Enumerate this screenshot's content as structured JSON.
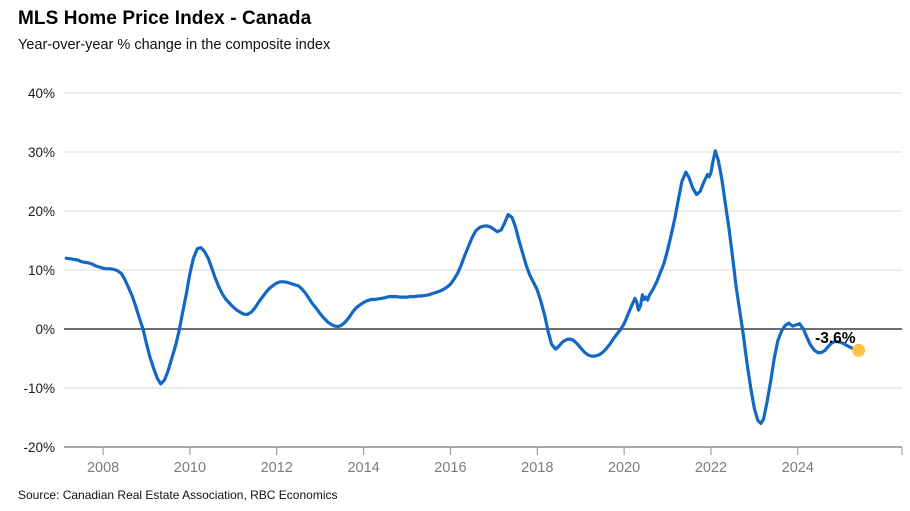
{
  "chart_data": {
    "type": "line",
    "title": "MLS Home Price Index - Canada",
    "subtitle": "Year-over-year % change in the composite index",
    "source": "Source: Canadian Real Estate Association, RBC Economics",
    "xlabel": "",
    "ylabel": "",
    "legend_position": "none",
    "grid": "horizontal gridlines at each 10%, darker line at 0%",
    "x_range": [
      2007.1,
      2026.4
    ],
    "y_range": [
      -20,
      40
    ],
    "x_ticks": [
      {
        "value": 2008,
        "label": "2008"
      },
      {
        "value": 2010,
        "label": "2010"
      },
      {
        "value": 2012,
        "label": "2012"
      },
      {
        "value": 2014,
        "label": "2014"
      },
      {
        "value": 2016,
        "label": "2016"
      },
      {
        "value": 2018,
        "label": "2018"
      },
      {
        "value": 2020,
        "label": "2020"
      },
      {
        "value": 2022,
        "label": "2022"
      },
      {
        "value": 2024,
        "label": "2024"
      }
    ],
    "y_ticks": [
      {
        "value": 40,
        "label": "40%"
      },
      {
        "value": 30,
        "label": "30%"
      },
      {
        "value": 20,
        "label": "20%"
      },
      {
        "value": 10,
        "label": "10%"
      },
      {
        "value": 0,
        "label": "0%"
      },
      {
        "value": -10,
        "label": "-10%"
      },
      {
        "value": -20,
        "label": "-20%"
      }
    ],
    "colors": {
      "line": "#1268c3",
      "dot": "#fdc244",
      "grid": "#d9d9d9",
      "axis": "#8c8c8c",
      "zero_line": "#3f3f3f",
      "x_tick_label": "#7c7c7c",
      "y_tick_label": "#1a1a1a",
      "annotation": "#000000"
    },
    "end_point": {
      "x": 2025.4,
      "y": -3.6,
      "label": "-3.6%"
    },
    "series": [
      {
        "name": "MLS HPI composite index, y/y % change",
        "points": [
          [
            2007.15,
            12.0
          ],
          [
            2007.25,
            11.9
          ],
          [
            2007.33,
            11.8
          ],
          [
            2007.42,
            11.7
          ],
          [
            2007.5,
            11.4
          ],
          [
            2007.58,
            11.3
          ],
          [
            2007.67,
            11.2
          ],
          [
            2007.75,
            11.0
          ],
          [
            2007.83,
            10.7
          ],
          [
            2007.92,
            10.5
          ],
          [
            2008.0,
            10.3
          ],
          [
            2008.08,
            10.2
          ],
          [
            2008.17,
            10.2
          ],
          [
            2008.25,
            10.1
          ],
          [
            2008.33,
            9.9
          ],
          [
            2008.42,
            9.4
          ],
          [
            2008.5,
            8.4
          ],
          [
            2008.58,
            7.1
          ],
          [
            2008.67,
            5.6
          ],
          [
            2008.75,
            3.9
          ],
          [
            2008.83,
            2.0
          ],
          [
            2008.92,
            0.0
          ],
          [
            2009.0,
            -2.5
          ],
          [
            2009.08,
            -4.8
          ],
          [
            2009.17,
            -6.8
          ],
          [
            2009.25,
            -8.4
          ],
          [
            2009.33,
            -9.3
          ],
          [
            2009.42,
            -8.6
          ],
          [
            2009.5,
            -7.0
          ],
          [
            2009.58,
            -5.0
          ],
          [
            2009.67,
            -2.8
          ],
          [
            2009.75,
            -0.3
          ],
          [
            2009.83,
            2.7
          ],
          [
            2009.92,
            6.0
          ],
          [
            2010.0,
            9.4
          ],
          [
            2010.08,
            12.0
          ],
          [
            2010.17,
            13.6
          ],
          [
            2010.25,
            13.8
          ],
          [
            2010.33,
            13.2
          ],
          [
            2010.42,
            12.0
          ],
          [
            2010.5,
            10.4
          ],
          [
            2010.58,
            8.7
          ],
          [
            2010.67,
            7.1
          ],
          [
            2010.75,
            5.9
          ],
          [
            2010.83,
            5.0
          ],
          [
            2010.92,
            4.3
          ],
          [
            2011.0,
            3.7
          ],
          [
            2011.08,
            3.2
          ],
          [
            2011.17,
            2.8
          ],
          [
            2011.25,
            2.5
          ],
          [
            2011.33,
            2.5
          ],
          [
            2011.42,
            2.9
          ],
          [
            2011.5,
            3.6
          ],
          [
            2011.58,
            4.5
          ],
          [
            2011.67,
            5.4
          ],
          [
            2011.75,
            6.2
          ],
          [
            2011.83,
            6.9
          ],
          [
            2011.92,
            7.4
          ],
          [
            2012.0,
            7.8
          ],
          [
            2012.08,
            8.0
          ],
          [
            2012.17,
            8.0
          ],
          [
            2012.25,
            7.9
          ],
          [
            2012.33,
            7.7
          ],
          [
            2012.42,
            7.5
          ],
          [
            2012.5,
            7.3
          ],
          [
            2012.58,
            6.8
          ],
          [
            2012.67,
            6.0
          ],
          [
            2012.75,
            5.1
          ],
          [
            2012.83,
            4.2
          ],
          [
            2012.92,
            3.4
          ],
          [
            2013.0,
            2.6
          ],
          [
            2013.08,
            1.9
          ],
          [
            2013.17,
            1.2
          ],
          [
            2013.25,
            0.8
          ],
          [
            2013.33,
            0.5
          ],
          [
            2013.42,
            0.4
          ],
          [
            2013.5,
            0.7
          ],
          [
            2013.58,
            1.2
          ],
          [
            2013.67,
            2.0
          ],
          [
            2013.75,
            2.9
          ],
          [
            2013.83,
            3.6
          ],
          [
            2013.92,
            4.1
          ],
          [
            2014.0,
            4.5
          ],
          [
            2014.08,
            4.8
          ],
          [
            2014.17,
            5.0
          ],
          [
            2014.25,
            5.0
          ],
          [
            2014.33,
            5.1
          ],
          [
            2014.42,
            5.2
          ],
          [
            2014.5,
            5.3
          ],
          [
            2014.58,
            5.5
          ],
          [
            2014.67,
            5.5
          ],
          [
            2014.75,
            5.5
          ],
          [
            2014.83,
            5.4
          ],
          [
            2014.92,
            5.4
          ],
          [
            2015.0,
            5.4
          ],
          [
            2015.08,
            5.5
          ],
          [
            2015.17,
            5.5
          ],
          [
            2015.25,
            5.6
          ],
          [
            2015.33,
            5.6
          ],
          [
            2015.42,
            5.7
          ],
          [
            2015.5,
            5.8
          ],
          [
            2015.58,
            6.0
          ],
          [
            2015.67,
            6.2
          ],
          [
            2015.75,
            6.4
          ],
          [
            2015.83,
            6.7
          ],
          [
            2015.92,
            7.1
          ],
          [
            2016.0,
            7.6
          ],
          [
            2016.08,
            8.4
          ],
          [
            2016.17,
            9.5
          ],
          [
            2016.25,
            10.9
          ],
          [
            2016.33,
            12.5
          ],
          [
            2016.42,
            14.1
          ],
          [
            2016.5,
            15.5
          ],
          [
            2016.58,
            16.6
          ],
          [
            2016.67,
            17.2
          ],
          [
            2016.75,
            17.4
          ],
          [
            2016.83,
            17.5
          ],
          [
            2016.92,
            17.3
          ],
          [
            2017.0,
            16.9
          ],
          [
            2017.08,
            16.5
          ],
          [
            2017.17,
            16.8
          ],
          [
            2017.25,
            18.0
          ],
          [
            2017.33,
            19.4
          ],
          [
            2017.42,
            18.9
          ],
          [
            2017.5,
            17.2
          ],
          [
            2017.58,
            15.0
          ],
          [
            2017.67,
            12.7
          ],
          [
            2017.75,
            10.7
          ],
          [
            2017.83,
            9.1
          ],
          [
            2017.92,
            7.8
          ],
          [
            2018.0,
            6.6
          ],
          [
            2018.08,
            4.8
          ],
          [
            2018.17,
            2.3
          ],
          [
            2018.25,
            -0.4
          ],
          [
            2018.33,
            -2.6
          ],
          [
            2018.42,
            -3.4
          ],
          [
            2018.5,
            -2.9
          ],
          [
            2018.58,
            -2.2
          ],
          [
            2018.67,
            -1.8
          ],
          [
            2018.75,
            -1.7
          ],
          [
            2018.83,
            -1.9
          ],
          [
            2018.92,
            -2.5
          ],
          [
            2019.0,
            -3.2
          ],
          [
            2019.08,
            -3.9
          ],
          [
            2019.17,
            -4.4
          ],
          [
            2019.25,
            -4.6
          ],
          [
            2019.33,
            -4.6
          ],
          [
            2019.42,
            -4.4
          ],
          [
            2019.5,
            -4.0
          ],
          [
            2019.58,
            -3.4
          ],
          [
            2019.67,
            -2.6
          ],
          [
            2019.75,
            -1.7
          ],
          [
            2019.83,
            -0.9
          ],
          [
            2019.92,
            -0.1
          ],
          [
            2020.0,
            0.9
          ],
          [
            2020.08,
            2.3
          ],
          [
            2020.17,
            3.9
          ],
          [
            2020.25,
            5.2
          ],
          [
            2020.29,
            4.6
          ],
          [
            2020.33,
            3.2
          ],
          [
            2020.38,
            4.0
          ],
          [
            2020.42,
            5.8
          ],
          [
            2020.46,
            5.0
          ],
          [
            2020.5,
            5.4
          ],
          [
            2020.54,
            4.9
          ],
          [
            2020.58,
            5.7
          ],
          [
            2020.67,
            6.8
          ],
          [
            2020.75,
            8.0
          ],
          [
            2020.83,
            9.5
          ],
          [
            2020.92,
            11.2
          ],
          [
            2021.0,
            13.3
          ],
          [
            2021.08,
            15.8
          ],
          [
            2021.17,
            18.8
          ],
          [
            2021.25,
            22.0
          ],
          [
            2021.33,
            25.0
          ],
          [
            2021.42,
            26.6
          ],
          [
            2021.5,
            25.6
          ],
          [
            2021.58,
            23.9
          ],
          [
            2021.67,
            22.8
          ],
          [
            2021.75,
            23.3
          ],
          [
            2021.83,
            24.8
          ],
          [
            2021.92,
            26.2
          ],
          [
            2021.96,
            25.8
          ],
          [
            2022.0,
            26.5
          ],
          [
            2022.04,
            28.2
          ],
          [
            2022.1,
            30.2
          ],
          [
            2022.17,
            28.6
          ],
          [
            2022.25,
            25.4
          ],
          [
            2022.33,
            21.3
          ],
          [
            2022.42,
            16.8
          ],
          [
            2022.5,
            12.0
          ],
          [
            2022.58,
            7.2
          ],
          [
            2022.67,
            2.8
          ],
          [
            2022.75,
            -1.2
          ],
          [
            2022.83,
            -5.8
          ],
          [
            2022.92,
            -10.2
          ],
          [
            2023.0,
            -13.5
          ],
          [
            2023.08,
            -15.5
          ],
          [
            2023.15,
            -16.0
          ],
          [
            2023.21,
            -15.3
          ],
          [
            2023.29,
            -12.4
          ],
          [
            2023.38,
            -8.6
          ],
          [
            2023.46,
            -4.9
          ],
          [
            2023.54,
            -2.0
          ],
          [
            2023.63,
            -0.3
          ],
          [
            2023.71,
            0.6
          ],
          [
            2023.79,
            1.0
          ],
          [
            2023.88,
            0.5
          ],
          [
            2023.96,
            0.7
          ],
          [
            2024.04,
            0.9
          ],
          [
            2024.13,
            0.0
          ],
          [
            2024.21,
            -1.4
          ],
          [
            2024.29,
            -2.7
          ],
          [
            2024.38,
            -3.6
          ],
          [
            2024.46,
            -4.0
          ],
          [
            2024.54,
            -4.0
          ],
          [
            2024.63,
            -3.6
          ],
          [
            2024.71,
            -2.9
          ],
          [
            2024.79,
            -2.3
          ],
          [
            2024.88,
            -2.1
          ],
          [
            2024.96,
            -2.2
          ],
          [
            2025.04,
            -2.4
          ],
          [
            2025.13,
            -2.8
          ],
          [
            2025.21,
            -3.1
          ],
          [
            2025.29,
            -3.4
          ],
          [
            2025.4,
            -3.6
          ]
        ]
      }
    ]
  }
}
